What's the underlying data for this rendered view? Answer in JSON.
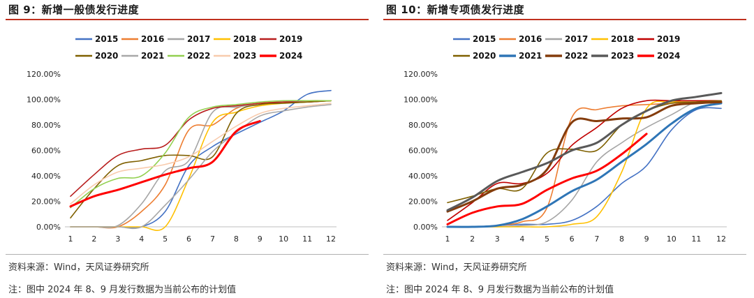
{
  "palette": {
    "2015": "#4472c4",
    "2016": "#ed7d31",
    "2017": "#a5a5a5",
    "2018": "#ffc000",
    "2019": "#b81d1d",
    "2020": "#7f6000",
    "2021": "#a8a8a8",
    "2022": "#92d050",
    "2023": "#f8cbad",
    "2024": "#ff0000"
  },
  "palette_right": {
    "2015": "#4472c4",
    "2016": "#ed7d31",
    "2017": "#a5a5a5",
    "2018": "#ffc000",
    "2019": "#c00000",
    "2020": "#7f6000",
    "2021": "#2e75b6",
    "2022": "#843c0c",
    "2023": "#595959",
    "2024": "#ff0000"
  },
  "panels": [
    {
      "title": "图 9：新增一般债发行进度",
      "source": "资料来源：Wind，天风证券研究所",
      "note": "注：图中 2024 年 8、9 月发行数据为当前公布的计划值"
    },
    {
      "title": "图 10：新增专项债发行进度",
      "source": "资料来源：Wind，天风证券研究所",
      "note": "注：图中 2024 年 8、9 月发行数据为当前公布的计划值"
    }
  ],
  "chart_data": [
    {
      "type": "line",
      "x": [
        1,
        2,
        3,
        4,
        5,
        6,
        7,
        8,
        9,
        10,
        11,
        12
      ],
      "ylim": [
        0,
        1.2
      ],
      "ytick_labels": [
        "0.00%",
        "20.00%",
        "40.00%",
        "60.00%",
        "80.00%",
        "100.00%",
        "120.00%"
      ],
      "xtick_labels": [
        "1",
        "2",
        "3",
        "4",
        "5",
        "6",
        "7",
        "8",
        "9",
        "10",
        "11",
        "12"
      ],
      "legend_position": "top",
      "series": [
        {
          "name": "2015",
          "values": [
            0,
            0,
            0,
            0,
            0.12,
            0.48,
            0.63,
            0.73,
            0.82,
            0.91,
            1.04,
            1.07
          ]
        },
        {
          "name": "2016",
          "values": [
            0,
            0,
            0,
            0.12,
            0.33,
            0.76,
            0.8,
            0.93,
            0.97,
            0.98,
            0.99,
            0.99
          ]
        },
        {
          "name": "2017",
          "values": [
            0,
            0,
            0.01,
            0.18,
            0.44,
            0.52,
            0.9,
            0.94,
            0.96,
            0.98,
            0.99,
            0.99
          ]
        },
        {
          "name": "2018",
          "values": [
            0,
            0,
            0,
            0,
            0,
            0.38,
            0.82,
            0.9,
            0.95,
            0.97,
            0.98,
            0.99
          ]
        },
        {
          "name": "2019",
          "values": [
            0.24,
            0.41,
            0.56,
            0.61,
            0.64,
            0.84,
            0.93,
            0.95,
            0.97,
            0.98,
            0.98,
            0.99
          ]
        },
        {
          "name": "2020",
          "values": [
            0.07,
            0.3,
            0.48,
            0.52,
            0.56,
            0.56,
            0.55,
            0.89,
            0.96,
            0.97,
            0.98,
            0.99
          ]
        },
        {
          "name": "2021",
          "values": [
            0,
            0,
            0,
            0,
            0.17,
            0.37,
            0.59,
            0.74,
            0.87,
            0.91,
            0.94,
            0.96
          ]
        },
        {
          "name": "2022",
          "values": [
            0.15,
            0.3,
            0.38,
            0.4,
            0.58,
            0.86,
            0.94,
            0.96,
            0.98,
            0.99,
            0.99,
            0.99
          ]
        },
        {
          "name": "2023",
          "values": [
            0.18,
            0.33,
            0.43,
            0.46,
            0.49,
            0.55,
            0.67,
            0.79,
            0.89,
            0.93,
            0.95,
            0.97
          ]
        },
        {
          "name": "2024",
          "values": [
            0.16,
            0.24,
            0.29,
            0.35,
            0.41,
            0.46,
            0.51,
            0.75,
            0.83,
            null,
            null,
            null
          ]
        }
      ]
    },
    {
      "type": "line",
      "x": [
        1,
        2,
        3,
        4,
        5,
        6,
        7,
        8,
        9,
        10,
        11,
        12
      ],
      "ylim": [
        0,
        1.2
      ],
      "ytick_labels": [
        "0.00%",
        "20.00%",
        "40.00%",
        "60.00%",
        "80.00%",
        "100.00%",
        "120.00%"
      ],
      "xtick_labels": [
        "1",
        "2",
        "3",
        "4",
        "5",
        "6",
        "7",
        "8",
        "9",
        "10",
        "11",
        "12"
      ],
      "legend_position": "top",
      "series": [
        {
          "name": "2015",
          "values": [
            0,
            0,
            0.01,
            0.02,
            0.02,
            0.05,
            0.16,
            0.34,
            0.48,
            0.76,
            0.92,
            0.93
          ]
        },
        {
          "name": "2016",
          "values": [
            0,
            0,
            0.01,
            0.04,
            0.15,
            0.86,
            0.92,
            0.95,
            0.96,
            0.97,
            0.98,
            0.99
          ]
        },
        {
          "name": "2017",
          "values": [
            0,
            0,
            0,
            0.01,
            0.04,
            0.21,
            0.51,
            0.66,
            0.78,
            0.88,
            0.98,
            0.99
          ]
        },
        {
          "name": "2018",
          "values": [
            0,
            0,
            0,
            0,
            0,
            0.02,
            0.08,
            0.43,
            0.93,
            0.98,
            0.99,
            0.99
          ]
        },
        {
          "name": "2019",
          "values": [
            0.05,
            0.19,
            0.34,
            0.34,
            0.42,
            0.64,
            0.78,
            0.93,
            0.99,
            0.99,
            0.99,
            0.99
          ]
        },
        {
          "name": "2020",
          "values": [
            0.19,
            0.24,
            0.3,
            0.3,
            0.58,
            0.61,
            0.6,
            0.8,
            0.91,
            0.97,
            0.98,
            0.99
          ]
        },
        {
          "name": "2021",
          "values": [
            0,
            0,
            0.01,
            0.06,
            0.16,
            0.28,
            0.37,
            0.51,
            0.65,
            0.81,
            0.93,
            0.97
          ]
        },
        {
          "name": "2022",
          "values": [
            0.12,
            0.2,
            0.3,
            0.33,
            0.45,
            0.82,
            0.83,
            0.85,
            0.86,
            0.95,
            0.97,
            0.98
          ]
        },
        {
          "name": "2023",
          "values": [
            0.13,
            0.23,
            0.36,
            0.43,
            0.5,
            0.6,
            0.66,
            0.8,
            0.91,
            0.99,
            1.02,
            1.05
          ]
        },
        {
          "name": "2024",
          "values": [
            0.02,
            0.11,
            0.16,
            0.18,
            0.29,
            0.38,
            0.44,
            0.57,
            0.73,
            null,
            null,
            null
          ]
        }
      ]
    }
  ]
}
